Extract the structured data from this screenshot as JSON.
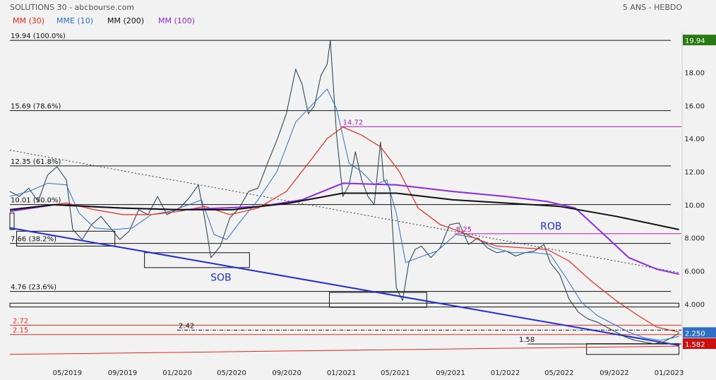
{
  "header": {
    "title": "SOLUTIONS 30 - abcbourse.com",
    "period": "5 ANS - HEBDO"
  },
  "legend": [
    {
      "label": "MM (30)",
      "color": "#e8291c"
    },
    {
      "label": "MME (10)",
      "color": "#2f6fc4"
    },
    {
      "label": "MM (200)",
      "color": "#111111"
    },
    {
      "label": "MM (100)",
      "color": "#8a2be2"
    }
  ],
  "price_labels": [
    {
      "text": "19.94",
      "value": 19.94,
      "color": "#2a7a14"
    },
    {
      "text": "2.250",
      "value": 2.25,
      "color": "#2f6fc4"
    },
    {
      "text": "1.582",
      "value": 1.582,
      "color": "#cc1111"
    }
  ],
  "chart_data": {
    "type": "line",
    "title": "SOLUTIONS 30",
    "xlim": [
      "2018-12-24",
      "2023-01-30"
    ],
    "ylim": [
      0.6,
      20.5
    ],
    "x_ticks": [
      "05/2019",
      "09/2019",
      "01/2020",
      "05/2020",
      "09/2020",
      "01/2021",
      "05/2021",
      "09/2021",
      "01/2022",
      "05/2022",
      "09/2022",
      "01/2023"
    ],
    "x_tick_dates": [
      "2019-05-01",
      "2019-09-01",
      "2020-01-01",
      "2020-05-01",
      "2020-09-01",
      "2021-01-01",
      "2021-05-01",
      "2021-09-01",
      "2022-01-01",
      "2022-05-01",
      "2022-09-01",
      "2023-01-01"
    ],
    "y_ticks": [
      4.0,
      6.0,
      8.0,
      10.0,
      12.0,
      14.0,
      16.0,
      18.0
    ],
    "y_tick_labels": [
      "4.000",
      "6.000",
      "8.000",
      "10.00",
      "12.00",
      "14.00",
      "16.00",
      "18.00"
    ],
    "fibonacci_levels": [
      {
        "label": "19.94  (100.0%)",
        "value": 19.94
      },
      {
        "label": "15.69  (78.6%)",
        "value": 15.69
      },
      {
        "label": "12.35  (61.8%)",
        "value": 12.35
      },
      {
        "label": "10.01  (50.0%)",
        "value": 10.01
      },
      {
        "label": "7.66  (38.2%)",
        "value": 7.66
      },
      {
        "label": "4.76  (23.6%)",
        "value": 4.76
      }
    ],
    "horizontal_levels": [
      {
        "label": "14.72",
        "value": 14.72,
        "from": "2021-01-01",
        "color": "#b01fb0"
      },
      {
        "label": "8.25",
        "value": 8.25,
        "from": "2021-09-10",
        "color": "#b01fb0"
      },
      {
        "label": "2.72",
        "value": 2.72,
        "from": "2018-12-24",
        "color": "#e8291c"
      },
      {
        "label": "2.15",
        "value": 2.15,
        "from": "2018-12-24",
        "color": "#e8291c"
      },
      {
        "label": "2.42",
        "value": 2.42,
        "from": "2020-01-01",
        "color": "#111111",
        "dashed": true
      },
      {
        "label": "1.58",
        "value": 1.58,
        "from": "2022-02-20",
        "color": "#111111"
      }
    ],
    "annotations": [
      {
        "text": "SOB",
        "x": "2020-03-15",
        "y": 5.4,
        "color": "#1f2fd0"
      },
      {
        "text": "ROB",
        "x": "2022-03-20",
        "y": 8.5,
        "color": "#1f2fd0"
      }
    ],
    "series": [
      {
        "name": "SOLUTIONS 30",
        "color": "#1e3a4a",
        "points": [
          [
            "2018-12-24",
            10.8
          ],
          [
            "2019-01-14",
            10.5
          ],
          [
            "2019-02-04",
            11.0
          ],
          [
            "2019-02-25",
            10.2
          ],
          [
            "2019-03-18",
            11.8
          ],
          [
            "2019-04-08",
            12.3
          ],
          [
            "2019-04-29",
            11.5
          ],
          [
            "2019-05-13",
            8.5
          ],
          [
            "2019-06-03",
            7.9
          ],
          [
            "2019-06-24",
            8.8
          ],
          [
            "2019-07-15",
            9.3
          ],
          [
            "2019-08-05",
            8.6
          ],
          [
            "2019-08-26",
            7.9
          ],
          [
            "2019-09-16",
            8.4
          ],
          [
            "2019-10-07",
            9.7
          ],
          [
            "2019-10-28",
            9.4
          ],
          [
            "2019-11-18",
            10.5
          ],
          [
            "2019-12-09",
            9.4
          ],
          [
            "2020-01-06",
            9.8
          ],
          [
            "2020-01-27",
            10.4
          ],
          [
            "2020-02-17",
            11.2
          ],
          [
            "2020-03-02",
            9.2
          ],
          [
            "2020-03-16",
            6.8
          ],
          [
            "2020-04-06",
            7.5
          ],
          [
            "2020-04-27",
            9.2
          ],
          [
            "2020-05-18",
            9.8
          ],
          [
            "2020-06-08",
            10.8
          ],
          [
            "2020-06-29",
            11.0
          ],
          [
            "2020-07-20",
            12.5
          ],
          [
            "2020-08-10",
            13.9
          ],
          [
            "2020-08-31",
            15.5
          ],
          [
            "2020-09-21",
            18.2
          ],
          [
            "2020-10-05",
            17.3
          ],
          [
            "2020-10-19",
            15.5
          ],
          [
            "2020-11-02",
            16.0
          ],
          [
            "2020-11-16",
            17.8
          ],
          [
            "2020-11-30",
            18.5
          ],
          [
            "2020-12-07",
            19.94
          ],
          [
            "2020-12-21",
            14.2
          ],
          [
            "2021-01-04",
            10.5
          ],
          [
            "2021-01-18",
            11.2
          ],
          [
            "2021-02-01",
            13.2
          ],
          [
            "2021-02-15",
            11.5
          ],
          [
            "2021-03-01",
            10.5
          ],
          [
            "2021-03-15",
            10.0
          ],
          [
            "2021-03-29",
            13.8
          ],
          [
            "2021-04-05",
            11.5
          ],
          [
            "2021-04-19",
            11.0
          ],
          [
            "2021-05-03",
            5.0
          ],
          [
            "2021-05-17",
            4.2
          ],
          [
            "2021-05-31",
            6.5
          ],
          [
            "2021-06-14",
            7.3
          ],
          [
            "2021-06-28",
            7.5
          ],
          [
            "2021-07-19",
            6.8
          ],
          [
            "2021-08-09",
            7.4
          ],
          [
            "2021-08-30",
            8.8
          ],
          [
            "2021-09-20",
            8.9
          ],
          [
            "2021-10-11",
            7.6
          ],
          [
            "2021-11-01",
            8.0
          ],
          [
            "2021-11-22",
            7.4
          ],
          [
            "2021-12-13",
            7.1
          ],
          [
            "2022-01-03",
            7.2
          ],
          [
            "2022-01-24",
            6.9
          ],
          [
            "2022-02-14",
            7.1
          ],
          [
            "2022-03-07",
            7.2
          ],
          [
            "2022-03-28",
            7.6
          ],
          [
            "2022-04-11",
            6.5
          ],
          [
            "2022-05-02",
            5.8
          ],
          [
            "2022-05-23",
            4.3
          ],
          [
            "2022-06-13",
            3.5
          ],
          [
            "2022-07-04",
            3.1
          ],
          [
            "2022-07-25",
            2.9
          ],
          [
            "2022-08-15",
            2.6
          ],
          [
            "2022-09-05",
            2.3
          ],
          [
            "2022-09-26",
            2.0
          ],
          [
            "2022-10-17",
            1.8
          ],
          [
            "2022-11-07",
            1.7
          ],
          [
            "2022-11-28",
            1.6
          ],
          [
            "2022-12-19",
            1.7
          ],
          [
            "2023-01-09",
            2.0
          ],
          [
            "2023-01-23",
            2.25
          ]
        ]
      },
      {
        "name": "MME (10)",
        "color": "#2f6fc4",
        "points": [
          [
            "2018-12-24",
            10.5
          ],
          [
            "2019-02-04",
            10.8
          ],
          [
            "2019-03-18",
            11.3
          ],
          [
            "2019-04-29",
            11.2
          ],
          [
            "2019-05-27",
            9.5
          ],
          [
            "2019-07-01",
            8.6
          ],
          [
            "2019-08-12",
            8.5
          ],
          [
            "2019-09-23",
            8.6
          ],
          [
            "2019-11-04",
            9.4
          ],
          [
            "2019-12-16",
            9.6
          ],
          [
            "2020-01-27",
            10.0
          ],
          [
            "2020-02-24",
            10.3
          ],
          [
            "2020-03-23",
            8.2
          ],
          [
            "2020-04-20",
            7.9
          ],
          [
            "2020-05-18",
            8.9
          ],
          [
            "2020-06-29",
            10.3
          ],
          [
            "2020-08-10",
            12.0
          ],
          [
            "2020-09-21",
            15.0
          ],
          [
            "2020-10-26",
            16.0
          ],
          [
            "2020-11-30",
            17.0
          ],
          [
            "2020-12-21",
            15.8
          ],
          [
            "2021-01-18",
            12.5
          ],
          [
            "2021-02-15",
            12.0
          ],
          [
            "2021-03-15",
            11.2
          ],
          [
            "2021-04-12",
            11.5
          ],
          [
            "2021-05-03",
            9.5
          ],
          [
            "2021-05-24",
            6.5
          ],
          [
            "2021-06-21",
            6.8
          ],
          [
            "2021-08-02",
            7.2
          ],
          [
            "2021-09-13",
            8.2
          ],
          [
            "2021-10-25",
            8.0
          ],
          [
            "2021-12-06",
            7.4
          ],
          [
            "2022-01-17",
            7.1
          ],
          [
            "2022-03-07",
            7.1
          ],
          [
            "2022-04-11",
            7.0
          ],
          [
            "2022-05-16",
            5.6
          ],
          [
            "2022-06-20",
            4.1
          ],
          [
            "2022-07-25",
            3.3
          ],
          [
            "2022-08-29",
            2.8
          ],
          [
            "2022-10-03",
            2.3
          ],
          [
            "2022-11-07",
            1.95
          ],
          [
            "2022-12-12",
            1.8
          ],
          [
            "2023-01-09",
            1.95
          ],
          [
            "2023-01-23",
            2.05
          ]
        ]
      },
      {
        "name": "MM (30)",
        "color": "#e8291c",
        "points": [
          [
            "2018-12-24",
            9.7
          ],
          [
            "2019-02-25",
            9.9
          ],
          [
            "2019-04-29",
            10.1
          ],
          [
            "2019-07-01",
            9.7
          ],
          [
            "2019-09-02",
            9.4
          ],
          [
            "2019-11-04",
            9.4
          ],
          [
            "2020-01-06",
            9.6
          ],
          [
            "2020-03-02",
            9.9
          ],
          [
            "2020-04-27",
            9.4
          ],
          [
            "2020-06-29",
            9.8
          ],
          [
            "2020-08-31",
            10.8
          ],
          [
            "2020-10-19",
            12.5
          ],
          [
            "2020-11-30",
            14.0
          ],
          [
            "2021-01-04",
            14.7
          ],
          [
            "2021-02-15",
            14.2
          ],
          [
            "2021-03-29",
            13.5
          ],
          [
            "2021-05-10",
            12.0
          ],
          [
            "2021-06-21",
            9.8
          ],
          [
            "2021-08-09",
            8.8
          ],
          [
            "2021-09-20",
            8.4
          ],
          [
            "2021-11-01",
            7.9
          ],
          [
            "2021-12-13",
            7.5
          ],
          [
            "2022-02-07",
            7.4
          ],
          [
            "2022-04-04",
            7.3
          ],
          [
            "2022-05-23",
            6.6
          ],
          [
            "2022-07-11",
            5.4
          ],
          [
            "2022-09-05",
            4.2
          ],
          [
            "2022-10-24",
            3.3
          ],
          [
            "2022-12-05",
            2.6
          ],
          [
            "2023-01-23",
            2.3
          ]
        ]
      },
      {
        "name": "MM (100)",
        "color": "#8a2be2",
        "points": [
          [
            "2018-12-24",
            9.6
          ],
          [
            "2019-04-01",
            10.0
          ],
          [
            "2019-09-02",
            9.8
          ],
          [
            "2020-01-06",
            9.7
          ],
          [
            "2020-04-06",
            9.8
          ],
          [
            "2020-07-06",
            9.9
          ],
          [
            "2020-10-05",
            10.3
          ],
          [
            "2021-01-04",
            11.3
          ],
          [
            "2021-05-03",
            11.2
          ],
          [
            "2021-09-06",
            10.8
          ],
          [
            "2022-01-03",
            10.5
          ],
          [
            "2022-04-04",
            10.2
          ],
          [
            "2022-06-06",
            9.8
          ],
          [
            "2022-08-01",
            8.4
          ],
          [
            "2022-10-03",
            6.8
          ],
          [
            "2022-12-05",
            6.1
          ],
          [
            "2023-01-23",
            5.8
          ]
        ]
      },
      {
        "name": "MM (200)",
        "color": "#111111",
        "points": [
          [
            "2018-12-24",
            9.7
          ],
          [
            "2019-04-01",
            10.0
          ],
          [
            "2019-09-02",
            9.8
          ],
          [
            "2020-01-06",
            9.7
          ],
          [
            "2020-05-04",
            9.7
          ],
          [
            "2020-09-07",
            10.1
          ],
          [
            "2021-01-04",
            10.7
          ],
          [
            "2021-05-03",
            10.7
          ],
          [
            "2021-09-06",
            10.3
          ],
          [
            "2022-01-03",
            10.1
          ],
          [
            "2022-05-02",
            9.9
          ],
          [
            "2022-09-05",
            9.3
          ],
          [
            "2023-01-23",
            8.5
          ]
        ]
      }
    ],
    "trendlines": [
      {
        "from": [
          "2018-12-24",
          8.6
        ],
        "to": [
          "2023-01-23",
          1.5
        ],
        "color": "#1f2fd0",
        "style": "solid"
      },
      {
        "from": [
          "2018-12-24",
          13.3
        ],
        "to": [
          "2023-01-23",
          5.9
        ],
        "color": "#333333",
        "style": "dotted"
      }
    ],
    "boxes": [
      {
        "x1": "2018-12-24",
        "x2": "2019-01-01",
        "y1": 8.5,
        "y2": 9.5
      },
      {
        "x1": "2019-01-08",
        "x2": "2019-08-15",
        "y1": 7.5,
        "y2": 8.4
      },
      {
        "x1": "2019-10-20",
        "x2": "2020-06-10",
        "y1": 6.2,
        "y2": 7.1
      },
      {
        "x1": "2018-12-24",
        "x2": "2023-01-23",
        "y1": 3.82,
        "y2": 4.05
      },
      {
        "x1": "2020-12-05",
        "x2": "2021-07-10",
        "y1": 3.8,
        "y2": 4.7
      },
      {
        "x1": "2022-07-01",
        "x2": "2023-01-23",
        "y1": 0.95,
        "y2": 1.6
      }
    ],
    "bottom_line": {
      "from": [
        "2018-12-24",
        0.95
      ],
      "to": [
        "2023-01-23",
        1.45
      ],
      "color": "#e8291c"
    }
  }
}
